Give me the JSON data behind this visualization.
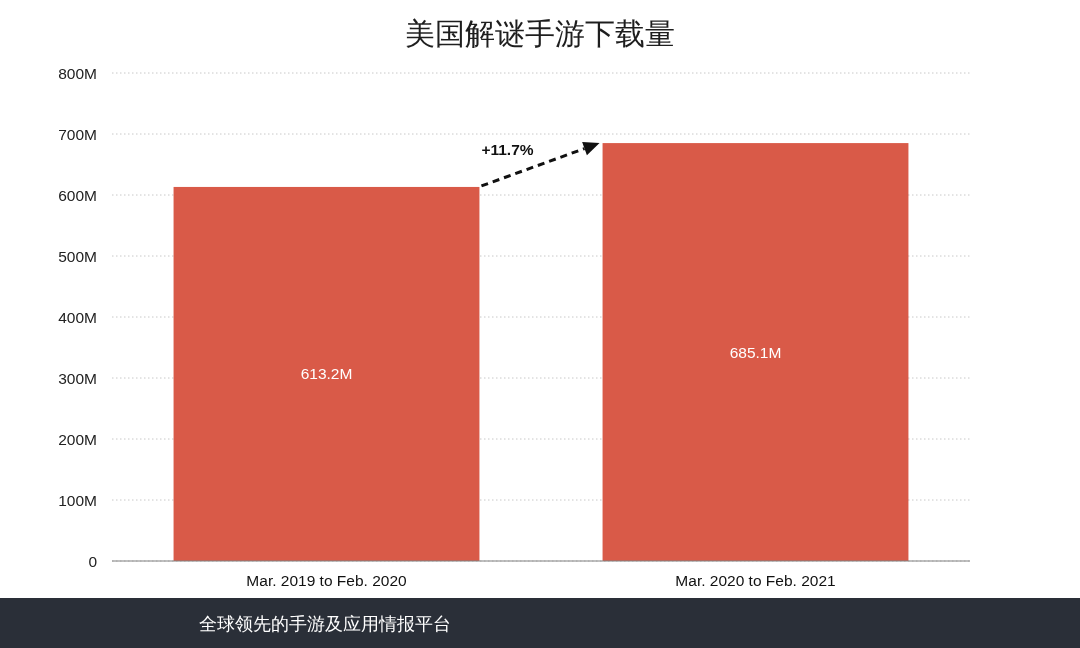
{
  "chart_data": {
    "type": "bar",
    "title": "美国解谜手游下载量",
    "categories": [
      "Mar. 2019 to Feb. 2020",
      "Mar. 2020 to Feb. 2021"
    ],
    "values": [
      613.2,
      685.1
    ],
    "color": "#d95a48",
    "value_labels": [
      "613.2M",
      "685.1M"
    ],
    "ylim": [
      0,
      800
    ],
    "yticks": [
      0,
      {
        "value": 100,
        "label": "100M"
      },
      {
        "value": 200,
        "label": "200M"
      },
      {
        "value": 300,
        "label": "300M"
      },
      {
        "value": 400,
        "label": "400M"
      },
      {
        "value": 500,
        "label": "500M"
      },
      {
        "value": 600,
        "label": "600M"
      },
      {
        "value": 700,
        "label": "700M"
      },
      {
        "value": 800,
        "label": "800M"
      }
    ],
    "grid": "y",
    "annotations": [
      "+11.7%",
      "全球领先的手游及应用情报平台"
    ]
  }
}
